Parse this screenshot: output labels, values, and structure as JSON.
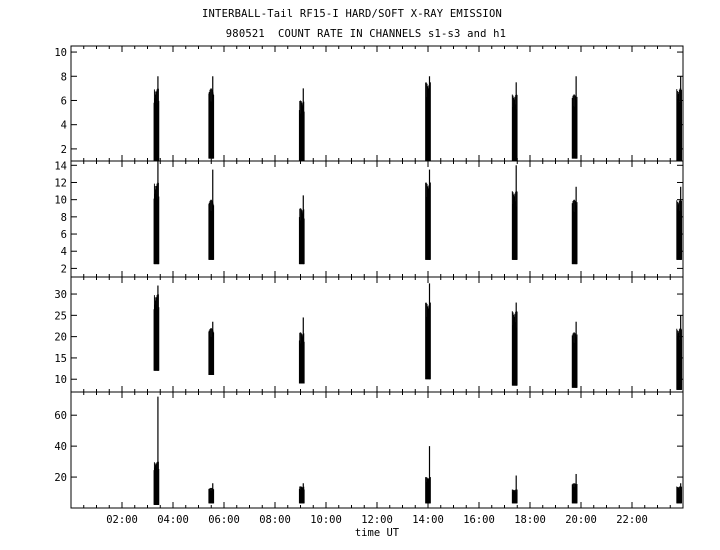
{
  "header": {
    "title": "INTERBALL-Tail RF15-I HARD/SOFT X-RAY EMISSION",
    "subtitle": "980521  COUNT RATE IN CHANNELS s1-s3 and h1"
  },
  "chart_data": [
    {
      "type": "line",
      "panel": "s1",
      "xlim": [
        0,
        24
      ],
      "ylim": [
        1,
        10.5
      ],
      "yticks": [
        2,
        4,
        6,
        8,
        10
      ],
      "bursts": [
        {
          "t": 3.35,
          "low": 1.0,
          "high": 7.0,
          "peak": 8.0
        },
        {
          "t": 5.5,
          "low": 1.2,
          "high": 7.0,
          "peak": 8.0
        },
        {
          "t": 9.05,
          "low": 1.0,
          "high": 6.0,
          "peak": 7.0
        },
        {
          "t": 14.0,
          "low": 1.0,
          "high": 7.5,
          "peak": 8.0
        },
        {
          "t": 17.4,
          "low": 1.0,
          "high": 6.5,
          "peak": 7.5
        },
        {
          "t": 19.75,
          "low": 1.2,
          "high": 6.5,
          "peak": 8.0
        },
        {
          "t": 23.85,
          "low": 1.0,
          "high": 7.0,
          "peak": 8.0
        }
      ]
    },
    {
      "type": "line",
      "panel": "s2",
      "xlim": [
        0,
        24
      ],
      "ylim": [
        1,
        14.5
      ],
      "yticks": [
        2,
        4,
        6,
        8,
        10,
        12,
        14
      ],
      "bursts": [
        {
          "t": 3.35,
          "low": 2.5,
          "high": 12.0,
          "peak": 14.5
        },
        {
          "t": 5.5,
          "low": 3.0,
          "high": 10.0,
          "peak": 13.5
        },
        {
          "t": 9.05,
          "low": 2.5,
          "high": 9.0,
          "peak": 10.5
        },
        {
          "t": 14.0,
          "low": 3.0,
          "high": 12.0,
          "peak": 13.5
        },
        {
          "t": 17.4,
          "low": 3.0,
          "high": 11.0,
          "peak": 14.0
        },
        {
          "t": 19.75,
          "low": 2.5,
          "high": 10.0,
          "peak": 11.5
        },
        {
          "t": 23.85,
          "low": 3.0,
          "high": 10.0,
          "peak": 11.5
        }
      ]
    },
    {
      "type": "line",
      "panel": "s3",
      "xlim": [
        0,
        24
      ],
      "ylim": [
        7,
        34
      ],
      "yticks": [
        10,
        15,
        20,
        25,
        30
      ],
      "bursts": [
        {
          "t": 3.35,
          "low": 12.0,
          "high": 30.0,
          "peak": 32.0
        },
        {
          "t": 5.5,
          "low": 11.0,
          "high": 22.0,
          "peak": 23.5
        },
        {
          "t": 9.05,
          "low": 9.0,
          "high": 21.0,
          "peak": 24.5
        },
        {
          "t": 14.0,
          "low": 10.0,
          "high": 28.0,
          "peak": 32.5
        },
        {
          "t": 17.4,
          "low": 8.5,
          "high": 26.0,
          "peak": 28.0
        },
        {
          "t": 19.75,
          "low": 8.0,
          "high": 21.0,
          "peak": 23.5
        },
        {
          "t": 23.85,
          "low": 7.5,
          "high": 22.0,
          "peak": 25.0
        }
      ]
    },
    {
      "type": "line",
      "panel": "h1",
      "xlim": [
        0,
        24
      ],
      "ylim": [
        0,
        75
      ],
      "yticks": [
        20,
        40,
        60
      ],
      "xticks": [
        "02:00",
        "04:00",
        "06:00",
        "08:00",
        "10:00",
        "12:00",
        "14:00",
        "16:00",
        "18:00",
        "20:00",
        "22:00"
      ],
      "xlabel": "time UT",
      "bursts": [
        {
          "t": 3.35,
          "low": 2.0,
          "high": 30.0,
          "peak": 72.0
        },
        {
          "t": 5.5,
          "low": 3.0,
          "high": 13.0,
          "peak": 16.0
        },
        {
          "t": 9.05,
          "low": 3.0,
          "high": 14.0,
          "peak": 16.0
        },
        {
          "t": 14.0,
          "low": 3.0,
          "high": 20.0,
          "peak": 40.0
        },
        {
          "t": 17.4,
          "low": 3.0,
          "high": 12.0,
          "peak": 21.0
        },
        {
          "t": 19.75,
          "low": 3.0,
          "high": 16.0,
          "peak": 22.0
        },
        {
          "t": 23.85,
          "low": 3.0,
          "high": 14.0,
          "peak": 16.0
        }
      ]
    }
  ]
}
